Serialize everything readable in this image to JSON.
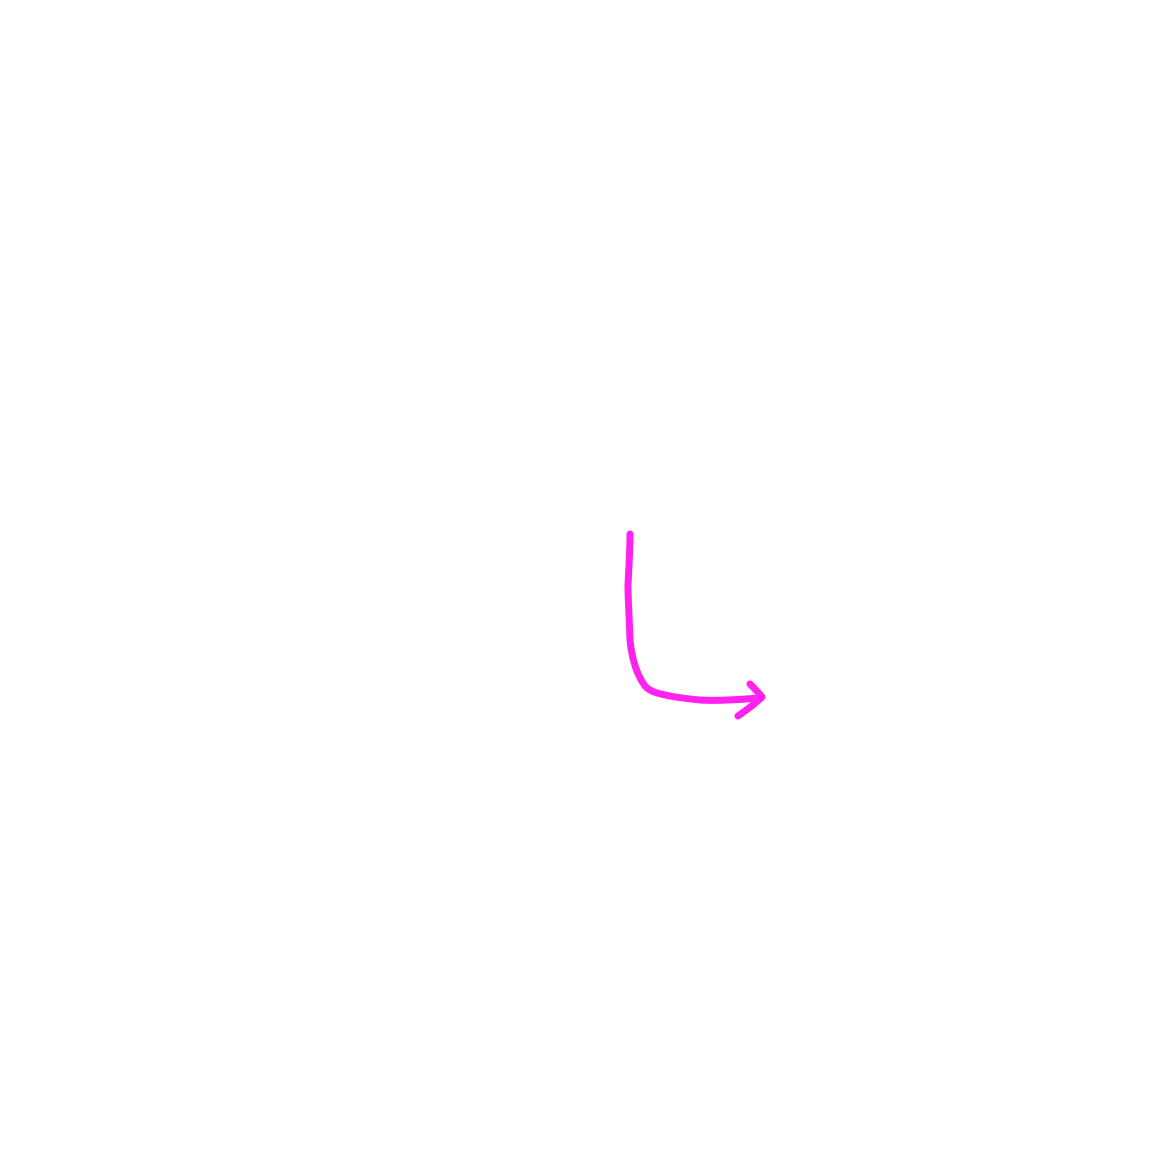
{
  "canvas": {
    "background": "#ffffff"
  },
  "drawing": {
    "shape": "hand-drawn-arrow-down-then-right",
    "stroke_color": "#ff22ee"
  }
}
